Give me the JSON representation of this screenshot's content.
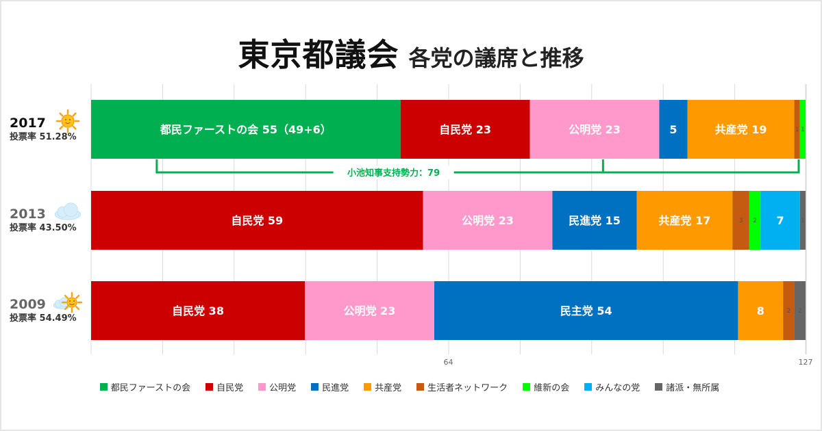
{
  "title": {
    "main": "東京都議会",
    "sub": "各党の議席と推移"
  },
  "parties": {
    "tomin": {
      "name": "都民ファーストの会",
      "color": "#00b050"
    },
    "ldp": {
      "name": "自民党",
      "color": "#cc0000"
    },
    "komeito": {
      "name": "公明党",
      "color": "#ff99cc"
    },
    "minshin": {
      "name": "民進党",
      "color": "#0070c0"
    },
    "jcp": {
      "name": "共産党",
      "color": "#ff9900"
    },
    "seikatsu": {
      "name": "生活者ネットワーク",
      "color": "#c55a11"
    },
    "ishin": {
      "name": "維新の会",
      "color": "#00ff00"
    },
    "minna": {
      "name": "みんなの党",
      "color": "#00b0f0"
    },
    "other": {
      "name": "諸派・無所属",
      "color": "#666666"
    }
  },
  "legend_order": [
    "tomin",
    "ldp",
    "komeito",
    "minshin",
    "jcp",
    "seikatsu",
    "ishin",
    "minna",
    "other"
  ],
  "chart_data": {
    "type": "bar",
    "orientation": "horizontal-stacked",
    "total_seats": 127,
    "x_ticks": [
      "64",
      "127"
    ],
    "rows": [
      {
        "year": "2017",
        "weather": "sunny",
        "turnout_label": "投票率 51.28%",
        "segments": [
          {
            "party": "tomin",
            "value": 55,
            "label": "都民ファーストの会 55（49+6）"
          },
          {
            "party": "ldp",
            "value": 23,
            "label": "自民党 23"
          },
          {
            "party": "komeito",
            "value": 23,
            "label": "公明党 23"
          },
          {
            "party": "minshin",
            "value": 5,
            "label": "5"
          },
          {
            "party": "jcp",
            "value": 19,
            "label": "共産党 19"
          },
          {
            "party": "seikatsu",
            "value": 1,
            "label": "1"
          },
          {
            "party": "ishin",
            "value": 1,
            "label": "1"
          }
        ]
      },
      {
        "year": "2013",
        "weather": "cloudy",
        "turnout_label": "投票率 43.50%",
        "segments": [
          {
            "party": "ldp",
            "value": 59,
            "label": "自民党 59"
          },
          {
            "party": "komeito",
            "value": 23,
            "label": "公明党 23"
          },
          {
            "party": "minshin",
            "value": 15,
            "label": "民進党 15"
          },
          {
            "party": "jcp",
            "value": 17,
            "label": "共産党 17"
          },
          {
            "party": "seikatsu",
            "value": 3,
            "label": "3"
          },
          {
            "party": "ishin",
            "value": 2,
            "label": "2"
          },
          {
            "party": "minna",
            "value": 7,
            "label": "7"
          },
          {
            "party": "other",
            "value": 1,
            "label": "1"
          }
        ]
      },
      {
        "year": "2009",
        "weather": "sun-behind-cloud",
        "turnout_label": "投票率 54.49%",
        "segments": [
          {
            "party": "ldp",
            "value": 38,
            "label": "自民党 38"
          },
          {
            "party": "komeito",
            "value": 23,
            "label": "公明党 23"
          },
          {
            "party": "minshin",
            "value": 54,
            "label": "民主党 54"
          },
          {
            "party": "jcp",
            "value": 8,
            "label": "8"
          },
          {
            "party": "seikatsu",
            "value": 2,
            "label": "2"
          },
          {
            "party": "other",
            "value": 2,
            "label": "2"
          }
        ]
      }
    ],
    "annotation": {
      "label": "小池知事支持勢力：79",
      "row": "2017",
      "brackets": [
        [
          0,
          55
        ],
        [
          55,
          127
        ]
      ]
    }
  }
}
